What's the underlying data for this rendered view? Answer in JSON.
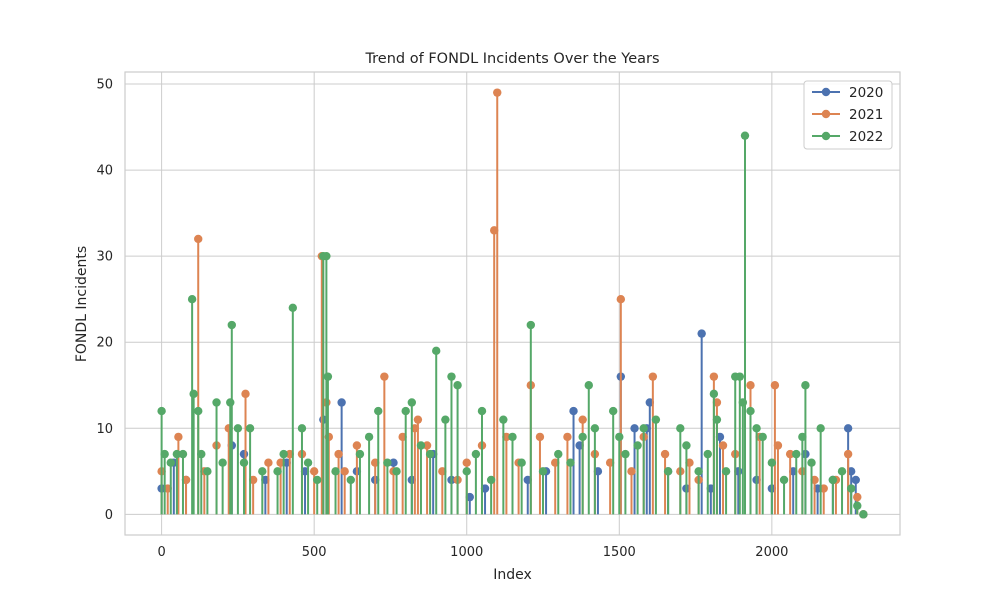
{
  "chart_data": {
    "type": "line",
    "title": "Trend of FONDL Incidents Over the Years",
    "xlabel": "Index",
    "ylabel": "FONDL Incidents",
    "xlim": [
      -120,
      2420
    ],
    "ylim": [
      -2.4,
      51.4
    ],
    "xticks": [
      0,
      500,
      1000,
      1500,
      2000
    ],
    "yticks": [
      0,
      10,
      20,
      30,
      40,
      50
    ],
    "grid": true,
    "legend_position": "top-right",
    "series": [
      {
        "name": "2020",
        "color": "#4c72b0",
        "points": [
          [
            0,
            3
          ],
          [
            40,
            6
          ],
          [
            80,
            4
          ],
          [
            230,
            8
          ],
          [
            270,
            7
          ],
          [
            340,
            4
          ],
          [
            410,
            6
          ],
          [
            470,
            5
          ],
          [
            530,
            11
          ],
          [
            590,
            13
          ],
          [
            640,
            5
          ],
          [
            700,
            4
          ],
          [
            760,
            6
          ],
          [
            820,
            4
          ],
          [
            890,
            7
          ],
          [
            950,
            4
          ],
          [
            1010,
            2
          ],
          [
            1060,
            3
          ],
          [
            1200,
            4
          ],
          [
            1260,
            5
          ],
          [
            1350,
            12
          ],
          [
            1370,
            8
          ],
          [
            1430,
            5
          ],
          [
            1505,
            16
          ],
          [
            1550,
            10
          ],
          [
            1590,
            10
          ],
          [
            1600,
            13
          ],
          [
            1660,
            5
          ],
          [
            1720,
            3
          ],
          [
            1770,
            21
          ],
          [
            1800,
            3
          ],
          [
            1830,
            9
          ],
          [
            1890,
            5
          ],
          [
            1950,
            4
          ],
          [
            2000,
            3
          ],
          [
            2070,
            5
          ],
          [
            2110,
            7
          ],
          [
            2150,
            3
          ],
          [
            2200,
            4
          ],
          [
            2250,
            10
          ],
          [
            2260,
            5
          ],
          [
            2275,
            4
          ],
          [
            2300,
            0
          ]
        ]
      },
      {
        "name": "2021",
        "color": "#dd8452",
        "points": [
          [
            0,
            5
          ],
          [
            20,
            3
          ],
          [
            55,
            9
          ],
          [
            80,
            4
          ],
          [
            120,
            32
          ],
          [
            140,
            5
          ],
          [
            180,
            8
          ],
          [
            220,
            10
          ],
          [
            275,
            14
          ],
          [
            300,
            4
          ],
          [
            350,
            6
          ],
          [
            390,
            6
          ],
          [
            420,
            7
          ],
          [
            460,
            7
          ],
          [
            500,
            5
          ],
          [
            525,
            30
          ],
          [
            540,
            13
          ],
          [
            548,
            9
          ],
          [
            580,
            7
          ],
          [
            600,
            5
          ],
          [
            640,
            8
          ],
          [
            700,
            6
          ],
          [
            730,
            16
          ],
          [
            760,
            5
          ],
          [
            790,
            9
          ],
          [
            830,
            10
          ],
          [
            840,
            11
          ],
          [
            870,
            8
          ],
          [
            920,
            5
          ],
          [
            970,
            4
          ],
          [
            1000,
            6
          ],
          [
            1050,
            8
          ],
          [
            1090,
            33
          ],
          [
            1100,
            49
          ],
          [
            1130,
            9
          ],
          [
            1170,
            6
          ],
          [
            1210,
            15
          ],
          [
            1240,
            9
          ],
          [
            1290,
            6
          ],
          [
            1330,
            9
          ],
          [
            1380,
            11
          ],
          [
            1420,
            7
          ],
          [
            1470,
            6
          ],
          [
            1505,
            25
          ],
          [
            1540,
            5
          ],
          [
            1580,
            9
          ],
          [
            1610,
            16
          ],
          [
            1650,
            7
          ],
          [
            1700,
            5
          ],
          [
            1730,
            6
          ],
          [
            1760,
            4
          ],
          [
            1810,
            16
          ],
          [
            1820,
            13
          ],
          [
            1840,
            8
          ],
          [
            1880,
            7
          ],
          [
            1930,
            15
          ],
          [
            1960,
            9
          ],
          [
            2010,
            15
          ],
          [
            2020,
            8
          ],
          [
            2060,
            7
          ],
          [
            2100,
            5
          ],
          [
            2140,
            4
          ],
          [
            2170,
            3
          ],
          [
            2210,
            4
          ],
          [
            2250,
            7
          ],
          [
            2280,
            2
          ],
          [
            2300,
            0
          ]
        ]
      },
      {
        "name": "2022",
        "color": "#55a868",
        "points": [
          [
            0,
            12
          ],
          [
            10,
            7
          ],
          [
            30,
            6
          ],
          [
            50,
            7
          ],
          [
            70,
            7
          ],
          [
            100,
            25
          ],
          [
            105,
            14
          ],
          [
            120,
            12
          ],
          [
            130,
            7
          ],
          [
            150,
            5
          ],
          [
            180,
            13
          ],
          [
            200,
            6
          ],
          [
            225,
            13
          ],
          [
            230,
            22
          ],
          [
            250,
            10
          ],
          [
            270,
            6
          ],
          [
            290,
            10
          ],
          [
            330,
            5
          ],
          [
            380,
            5
          ],
          [
            400,
            7
          ],
          [
            430,
            24
          ],
          [
            460,
            10
          ],
          [
            480,
            6
          ],
          [
            510,
            4
          ],
          [
            530,
            30
          ],
          [
            540,
            30
          ],
          [
            545,
            16
          ],
          [
            570,
            5
          ],
          [
            620,
            4
          ],
          [
            650,
            7
          ],
          [
            680,
            9
          ],
          [
            710,
            12
          ],
          [
            740,
            6
          ],
          [
            770,
            5
          ],
          [
            800,
            12
          ],
          [
            820,
            13
          ],
          [
            850,
            8
          ],
          [
            880,
            7
          ],
          [
            900,
            19
          ],
          [
            930,
            11
          ],
          [
            950,
            16
          ],
          [
            970,
            15
          ],
          [
            1000,
            5
          ],
          [
            1030,
            7
          ],
          [
            1050,
            12
          ],
          [
            1080,
            4
          ],
          [
            1120,
            11
          ],
          [
            1150,
            9
          ],
          [
            1180,
            6
          ],
          [
            1210,
            22
          ],
          [
            1250,
            5
          ],
          [
            1300,
            7
          ],
          [
            1340,
            6
          ],
          [
            1380,
            9
          ],
          [
            1400,
            15
          ],
          [
            1420,
            10
          ],
          [
            1480,
            12
          ],
          [
            1500,
            9
          ],
          [
            1520,
            7
          ],
          [
            1560,
            8
          ],
          [
            1580,
            10
          ],
          [
            1620,
            11
          ],
          [
            1660,
            5
          ],
          [
            1700,
            10
          ],
          [
            1720,
            8
          ],
          [
            1760,
            5
          ],
          [
            1790,
            7
          ],
          [
            1810,
            14
          ],
          [
            1820,
            11
          ],
          [
            1850,
            5
          ],
          [
            1880,
            16
          ],
          [
            1895,
            16
          ],
          [
            1905,
            13
          ],
          [
            1912,
            44
          ],
          [
            1930,
            12
          ],
          [
            1950,
            10
          ],
          [
            1970,
            9
          ],
          [
            2000,
            6
          ],
          [
            2040,
            4
          ],
          [
            2080,
            7
          ],
          [
            2100,
            9
          ],
          [
            2110,
            15
          ],
          [
            2130,
            6
          ],
          [
            2160,
            10
          ],
          [
            2200,
            4
          ],
          [
            2230,
            5
          ],
          [
            2260,
            3
          ],
          [
            2280,
            1
          ],
          [
            2300,
            0
          ]
        ]
      }
    ]
  }
}
